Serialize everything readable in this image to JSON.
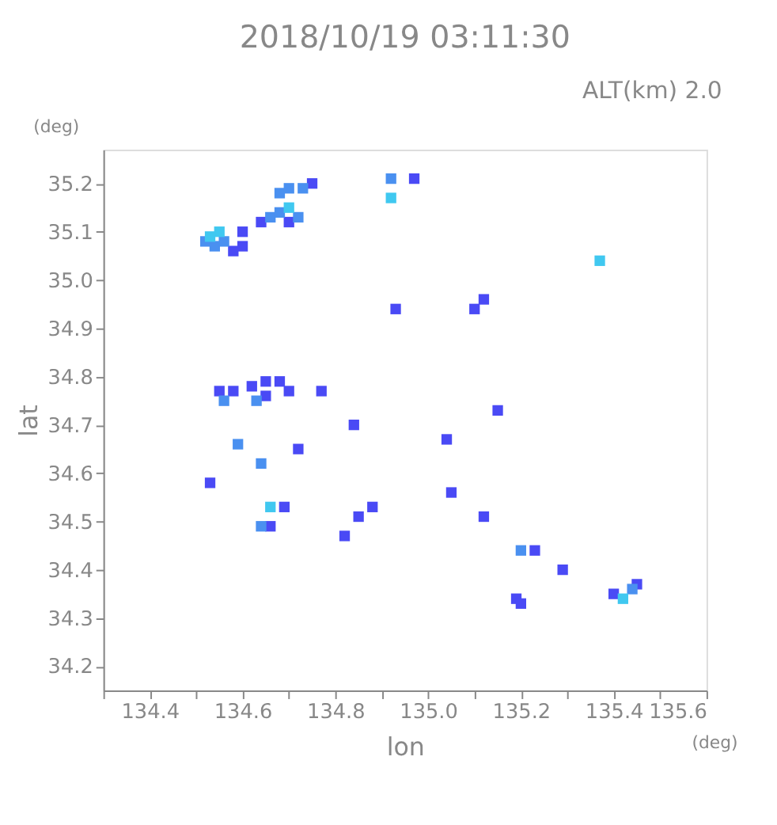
{
  "chart_data": {
    "type": "scatter",
    "title": "2018/10/19 03:11:30",
    "xlabel": "lon",
    "ylabel": "lat",
    "annotations": [
      "ALT(km) 2.0",
      "(deg)",
      "(deg)"
    ],
    "xlim": [
      134.3,
      135.6
    ],
    "ylim": [
      34.15,
      35.27
    ],
    "xticks": [
      {
        "value": 134.3,
        "label": null
      },
      134.4,
      {
        "value": 134.5,
        "label": null
      },
      134.6,
      {
        "value": 134.7,
        "label": null
      },
      134.8,
      {
        "value": 134.9,
        "label": null
      },
      {
        "value": 135.0,
        "label": "135.0"
      },
      {
        "value": 135.1,
        "label": null
      },
      135.2,
      {
        "value": 135.3,
        "label": null
      },
      135.4,
      {
        "value": 135.5,
        "label": null
      },
      135.6
    ],
    "yticks": [
      34.2,
      34.3,
      34.4,
      34.5,
      34.6,
      34.7,
      34.8,
      34.9,
      {
        "value": 35.0,
        "label": "35.0"
      },
      35.1,
      35.2
    ],
    "grid": false,
    "legend": false,
    "marker": "square",
    "series": [
      {
        "color": "#4a4af5",
        "x": [
          134.58,
          134.6,
          134.6,
          134.64,
          134.7,
          134.75,
          134.97,
          134.93,
          135.1,
          135.12,
          134.55,
          134.58,
          134.62,
          134.65,
          134.68,
          134.7,
          134.65,
          134.77,
          134.84,
          135.15,
          134.72,
          135.04,
          135.05,
          134.53,
          134.69,
          134.88,
          134.85,
          135.12,
          134.66,
          134.82,
          135.23,
          135.29,
          135.19,
          135.2,
          135.4,
          135.45
        ],
        "values": [
          35.06,
          35.07,
          35.1,
          35.12,
          35.12,
          35.2,
          35.21,
          34.94,
          34.94,
          34.96,
          34.77,
          34.77,
          34.78,
          34.79,
          34.79,
          34.77,
          34.76,
          34.77,
          34.7,
          34.73,
          34.65,
          34.67,
          34.56,
          34.58,
          34.53,
          34.53,
          34.51,
          34.51,
          34.49,
          34.47,
          34.44,
          34.4,
          34.34,
          34.33,
          34.35,
          34.37
        ]
      },
      {
        "color": "#4a90f0",
        "x": [
          134.52,
          134.54,
          134.56,
          134.66,
          134.68,
          134.72,
          134.68,
          134.7,
          134.73,
          134.92,
          134.59,
          134.64,
          134.64,
          135.2,
          135.44,
          134.56,
          134.63
        ],
        "values": [
          35.08,
          35.07,
          35.08,
          35.13,
          35.14,
          35.13,
          35.18,
          35.19,
          35.19,
          35.21,
          34.66,
          34.62,
          34.49,
          34.44,
          34.36,
          34.75,
          34.75
        ]
      },
      {
        "color": "#40c8f0",
        "x": [
          134.55,
          134.53,
          134.7,
          134.92,
          135.37,
          134.66,
          135.42
        ],
        "values": [
          35.1,
          35.09,
          35.15,
          35.17,
          35.04,
          34.53,
          34.34
        ]
      }
    ]
  }
}
